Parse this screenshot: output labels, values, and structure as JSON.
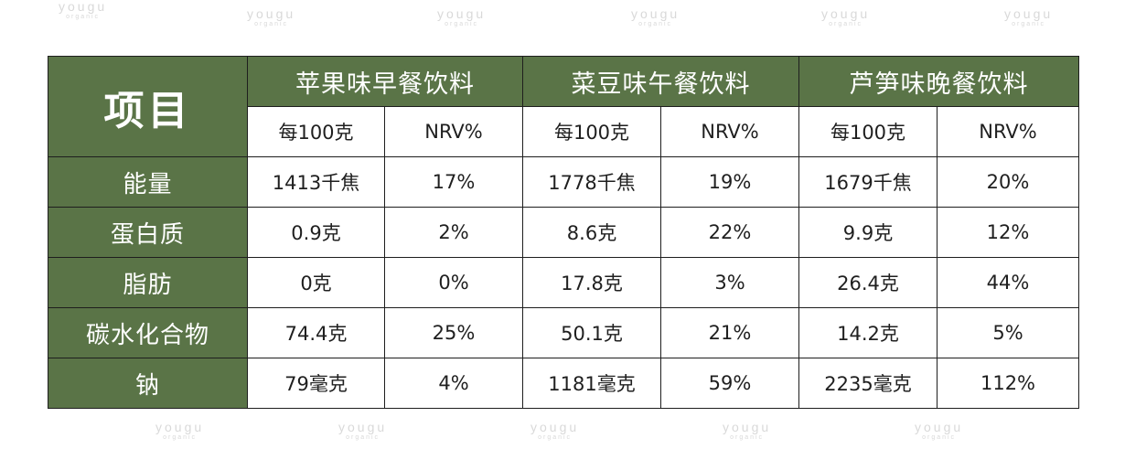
{
  "watermark": {
    "text": "yougu",
    "subtext": "organic"
  },
  "table": {
    "corner_label": "项目",
    "groups": [
      "苹果味早餐饮料",
      "菜豆味午餐饮料",
      "芦笋味晚餐饮料"
    ],
    "subheaders": [
      "每100克",
      "NRV%",
      "每100克",
      "NRV%",
      "每100克",
      "NRV%"
    ],
    "rows": [
      {
        "label": "能量",
        "cells": [
          "1413千焦",
          "17%",
          "1778千焦",
          "19%",
          "1679千焦",
          "20%"
        ]
      },
      {
        "label": "蛋白质",
        "cells": [
          "0.9克",
          "2%",
          "8.6克",
          "22%",
          "9.9克",
          "12%"
        ]
      },
      {
        "label": "脂肪",
        "cells": [
          "0克",
          "0%",
          "17.8克",
          "3%",
          "26.4克",
          "44%"
        ]
      },
      {
        "label": "碳水化合物",
        "cells": [
          "74.4克",
          "25%",
          "50.1克",
          "21%",
          "14.2克",
          "5%"
        ]
      },
      {
        "label": "钠",
        "cells": [
          "79毫克",
          "4%",
          "1181毫克",
          "59%",
          "2235毫克",
          "112%"
        ]
      }
    ]
  },
  "colors": {
    "header_green": "#5a7447",
    "header_text": "#ffffff",
    "border": "#1e1e1e",
    "cell_text": "#1f1f1f",
    "watermark": "#d9d9d9"
  }
}
